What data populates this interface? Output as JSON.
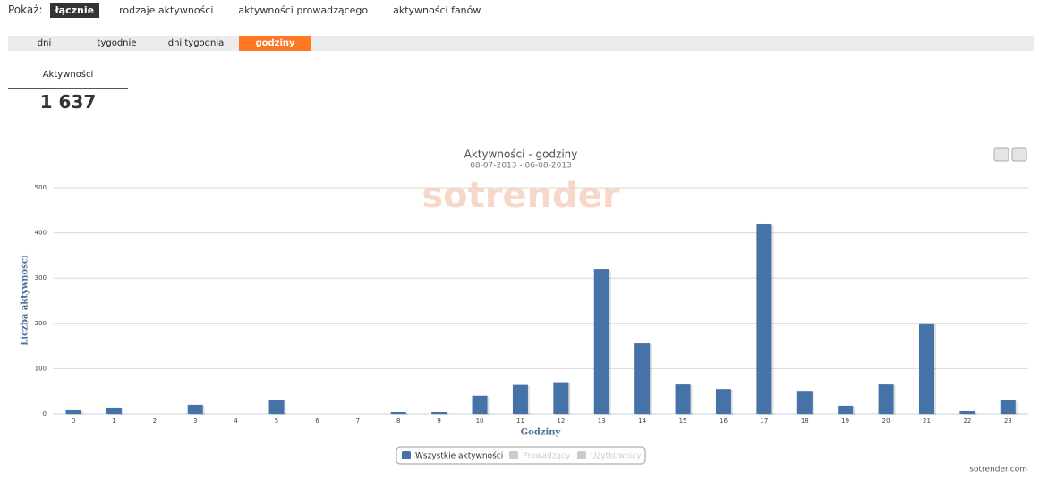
{
  "nav": {
    "label": "Pokaż:",
    "items": [
      "łącznie",
      "rodzaje aktywności",
      "aktywności prowadzącego",
      "aktywności fanów"
    ],
    "active": 0
  },
  "tabs": {
    "items": [
      "dni",
      "tygodnie",
      "dni tygodnia",
      "godziny"
    ],
    "active": 3
  },
  "stat": {
    "label": "Aktywności",
    "value": "1 637"
  },
  "chart_data": {
    "type": "bar",
    "title": "Aktywności - godziny",
    "subtitle": "08-07-2013 - 06-08-2013",
    "watermark": "sotrender",
    "x_label": "Godziny",
    "y_label": "Liczba aktywności",
    "categories": [
      "0",
      "1",
      "2",
      "3",
      "4",
      "5",
      "6",
      "7",
      "8",
      "9",
      "10",
      "11",
      "12",
      "13",
      "14",
      "15",
      "16",
      "17",
      "18",
      "19",
      "20",
      "21",
      "22",
      "23"
    ],
    "series": [
      {
        "name": "Wszystkie aktywności",
        "color": "#4572a7",
        "values": [
          8,
          14,
          0,
          20,
          0,
          30,
          0,
          0,
          4,
          4,
          40,
          64,
          70,
          320,
          156,
          65,
          55,
          419,
          49,
          18,
          65,
          200,
          6,
          30
        ]
      },
      {
        "name": "Prowadzący",
        "color": "#cccccc",
        "visible": false
      },
      {
        "name": "Użytkownicy",
        "color": "#cccccc",
        "visible": false
      }
    ],
    "ylim": [
      0,
      500
    ],
    "yticks": [
      0,
      100,
      200,
      300,
      400,
      500
    ],
    "grid": true,
    "legend": "bottom",
    "credit": "sotrender.com"
  }
}
